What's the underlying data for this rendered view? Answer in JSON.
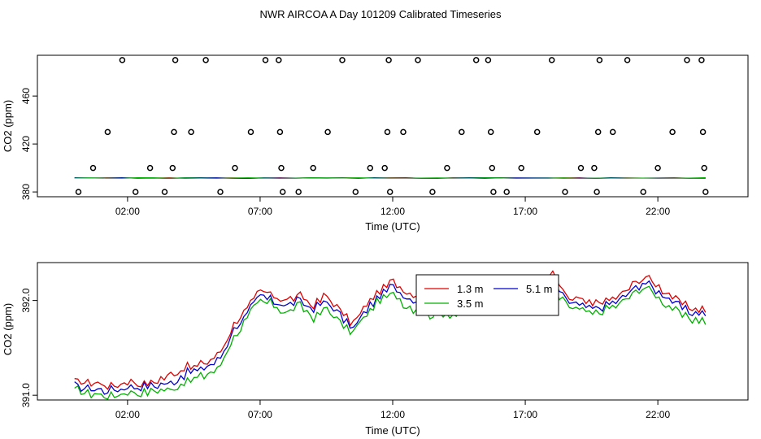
{
  "figure": {
    "title": "NWR AIRCOA A  Day 101209  Calibrated Timeseries"
  },
  "chart_data": [
    {
      "type": "scatter",
      "xlabel": "Time (UTC)",
      "ylabel": "CO2 (ppm)",
      "xlim": [
        -1.4,
        25.4
      ],
      "ylim": [
        376,
        494
      ],
      "x_ticks": [
        2,
        7,
        12,
        17,
        22
      ],
      "x_tick_labels": [
        "02:00",
        "07:00",
        "12:00",
        "17:00",
        "22:00"
      ],
      "y_ticks": [
        380,
        420,
        460
      ],
      "y_tick_labels": [
        "380",
        "420",
        "460"
      ],
      "grid": false,
      "points": {
        "x": [
          0.15,
          0.7,
          1.25,
          1.8,
          2.3,
          2.85,
          3.4,
          3.7,
          3.75,
          3.8,
          4.4,
          4.95,
          5.5,
          6.05,
          6.65,
          7.2,
          7.7,
          7.75,
          7.8,
          7.85,
          8.45,
          9.0,
          9.55,
          10.1,
          10.6,
          11.15,
          11.7,
          11.8,
          11.85,
          11.9,
          12.4,
          12.95,
          13.5,
          14.05,
          14.6,
          15.15,
          15.6,
          15.7,
          15.75,
          15.8,
          16.3,
          16.85,
          17.45,
          18.0,
          18.5,
          19.1,
          19.6,
          19.7,
          19.75,
          19.8,
          20.3,
          20.85,
          21.45,
          22.0,
          22.55,
          23.1,
          23.65,
          23.7,
          23.75,
          23.8
        ],
        "y": [
          380,
          400,
          430,
          490,
          380,
          400,
          380,
          400,
          430,
          490,
          430,
          490,
          380,
          400,
          430,
          490,
          490,
          430,
          400,
          380,
          380,
          400,
          430,
          490,
          380,
          400,
          400,
          430,
          490,
          380,
          430,
          490,
          380,
          400,
          430,
          490,
          490,
          430,
          400,
          380,
          380,
          400,
          430,
          490,
          380,
          400,
          400,
          380,
          430,
          490,
          430,
          490,
          380,
          400,
          430,
          490,
          490,
          430,
          400,
          380
        ]
      }
    },
    {
      "type": "line",
      "xlabel": "Time (UTC)",
      "ylabel": "CO2 (ppm)",
      "xlim": [
        -1.4,
        25.4
      ],
      "ylim": [
        390.95,
        392.4
      ],
      "x_ticks": [
        2,
        7,
        12,
        17,
        22
      ],
      "x_tick_labels": [
        "02:00",
        "07:00",
        "12:00",
        "17:00",
        "22:00"
      ],
      "y_ticks": [
        391.0,
        392.0
      ],
      "y_tick_labels": [
        "391.0",
        "392.0"
      ],
      "grid": false,
      "legend": {
        "position": "top-center"
      },
      "x_start": 0,
      "x_end": 23.8,
      "knots_x": [
        0,
        1,
        1.5,
        2,
        2.5,
        3,
        3.5,
        4,
        4.5,
        5,
        5.5,
        6,
        6.5,
        7,
        7.5,
        8,
        8.5,
        9,
        9.5,
        10,
        10.5,
        11,
        11.5,
        12,
        12.5,
        13,
        13.5,
        14,
        14.5,
        15,
        15.5,
        16,
        16.5,
        17,
        17.5,
        18,
        18.5,
        19,
        19.5,
        20,
        20.5,
        21,
        21.5,
        22,
        22.5,
        23,
        23.8
      ],
      "series": [
        {
          "name": "1.3 m",
          "color": "#e00000",
          "values": [
            391.15,
            391.12,
            391.1,
            391.15,
            391.12,
            391.15,
            391.2,
            391.28,
            391.3,
            391.35,
            391.45,
            391.75,
            391.9,
            392.1,
            392.05,
            392.0,
            392.05,
            391.95,
            392.05,
            391.9,
            391.75,
            391.95,
            392.1,
            392.2,
            392.1,
            392.05,
            392.0,
            392.05,
            391.98,
            392.0,
            392.02,
            392.1,
            392.12,
            392.15,
            392.2,
            392.3,
            392.05,
            392.0,
            391.95,
            392.0,
            392.05,
            392.15,
            392.25,
            392.15,
            392.05,
            391.95,
            391.9
          ]
        },
        {
          "name": "5.1 m",
          "color": "#0000d0",
          "values": [
            391.1,
            391.05,
            391.05,
            391.1,
            391.08,
            391.1,
            391.12,
            391.2,
            391.25,
            391.3,
            391.38,
            391.7,
            391.85,
            392.05,
            392.0,
            391.95,
            392.0,
            391.9,
            392.0,
            391.85,
            391.7,
            391.9,
            392.05,
            392.15,
            392.05,
            392.0,
            391.95,
            392.0,
            391.92,
            391.95,
            391.98,
            392.05,
            392.08,
            392.12,
            392.15,
            392.25,
            392.0,
            391.95,
            391.9,
            391.95,
            392.0,
            392.1,
            392.2,
            392.1,
            392.0,
            391.9,
            391.85
          ]
        },
        {
          "name": "3.5 m",
          "color": "#00b000",
          "values": [
            391.05,
            391.0,
            391.0,
            391.05,
            391.02,
            391.05,
            391.05,
            391.12,
            391.18,
            391.22,
            391.3,
            391.62,
            391.8,
            392.0,
            391.95,
            391.88,
            391.95,
            391.82,
            391.92,
            391.78,
            391.65,
            391.85,
            392.0,
            392.08,
            391.95,
            391.9,
            391.85,
            391.88,
            391.85,
            391.88,
            391.9,
            391.95,
            391.98,
            392.02,
            392.05,
            392.15,
            391.95,
            391.9,
            391.85,
            391.9,
            391.95,
            392.05,
            392.15,
            392.05,
            391.92,
            391.82,
            391.78
          ]
        }
      ]
    }
  ]
}
